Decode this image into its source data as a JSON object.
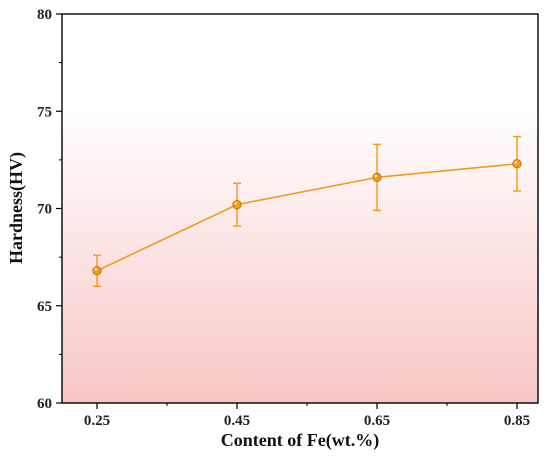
{
  "chart_data": {
    "type": "line",
    "title": "",
    "xlabel": "Content of Fe(wt.%)",
    "ylabel": "Hardness(HV)",
    "x": [
      0.25,
      0.45,
      0.65,
      0.85
    ],
    "x_tick_labels": [
      "0.25",
      "0.45",
      "0.65",
      "0.85"
    ],
    "xlim": [
      0.2,
      0.88
    ],
    "ylim": [
      60,
      80
    ],
    "y_ticks": [
      60,
      65,
      70,
      75,
      80
    ],
    "series": [
      {
        "values": [
          66.8,
          70.2,
          71.6,
          72.3
        ],
        "error": [
          0.8,
          1.1,
          1.7,
          1.4
        ],
        "color": "#f39a1a"
      }
    ],
    "grid": false,
    "legend": "none",
    "background_gradient": {
      "top": "#ffffff",
      "bottom": "#f8c6c6"
    }
  }
}
